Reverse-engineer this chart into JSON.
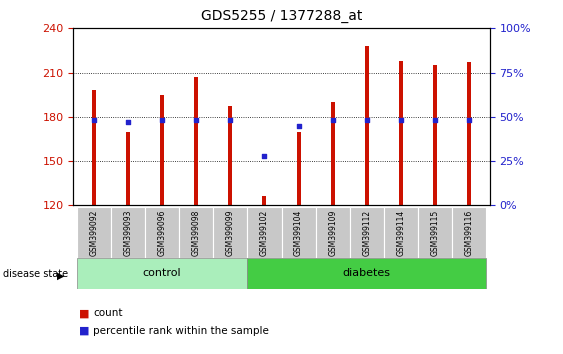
{
  "title": "GDS5255 / 1377288_at",
  "samples": [
    "GSM399092",
    "GSM399093",
    "GSM399096",
    "GSM399098",
    "GSM399099",
    "GSM399102",
    "GSM399104",
    "GSM399109",
    "GSM399112",
    "GSM399114",
    "GSM399115",
    "GSM399116"
  ],
  "bar_tops": [
    198,
    170,
    195,
    207,
    187,
    126,
    170,
    190,
    228,
    218,
    215,
    217
  ],
  "bar_bottom": 120,
  "blue_percentile": [
    48,
    47,
    48,
    48,
    48,
    28,
    45,
    48,
    48,
    48,
    48,
    48
  ],
  "ylim_min": 120,
  "ylim_max": 240,
  "yticks_left": [
    120,
    150,
    180,
    210,
    240
  ],
  "yticks_right": [
    0,
    25,
    50,
    75,
    100
  ],
  "bar_color": "#cc1100",
  "blue_color": "#2222cc",
  "n_control": 5,
  "n_diabetes": 7,
  "bar_width": 0.12,
  "control_color": "#aaeebb",
  "diabetes_color": "#44cc44"
}
